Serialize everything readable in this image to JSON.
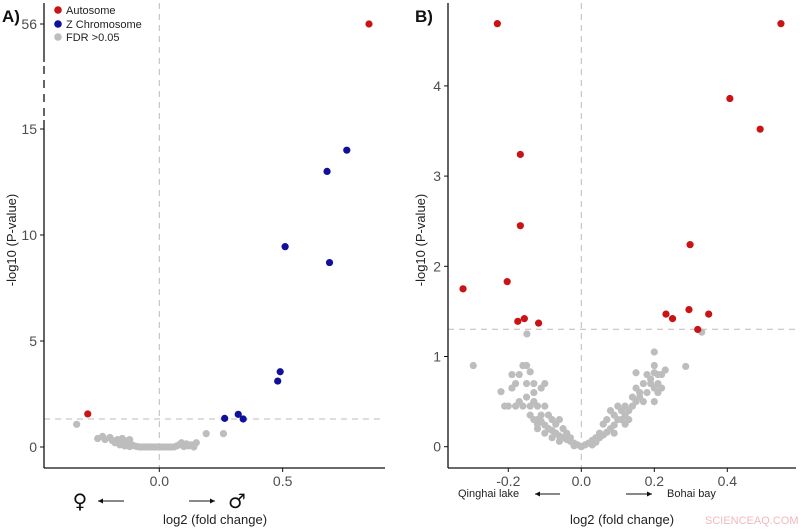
{
  "colors": {
    "autosome": "#c81414",
    "z_chromosome": "#10109a",
    "fdr": "#bdbdbd"
  },
  "watermark": "SCIENCEAQ.COM",
  "chart_data": [
    {
      "type": "scatter",
      "panel_label": "A)",
      "xlabel": "log2 (fold change)",
      "ylabel": "-log10 (P-value)",
      "x_ticks": [
        "0.0",
        "0.5"
      ],
      "y_ticks": [
        "0",
        "5",
        "10",
        "15",
        "56"
      ],
      "xlim": [
        -0.4,
        0.92
      ],
      "ylim": [
        -0.3,
        57
      ],
      "axis_break": [
        17,
        55
      ],
      "threshold_y": 1.3,
      "vline_x": 0,
      "left_annotation": "♀",
      "right_annotation": "♂",
      "legend": {
        "placement": "top-left",
        "entries": [
          "Autosome",
          "Z Chromosome",
          "FDR >0.05"
        ]
      },
      "series": [
        {
          "name": "Autosome",
          "points": [
            [
              -0.29,
              1.56
            ],
            [
              0.85,
              56
            ]
          ]
        },
        {
          "name": "Z Chromosome",
          "points": [
            [
              0.265,
              1.35
            ],
            [
              0.32,
              1.54
            ],
            [
              0.34,
              1.32
            ],
            [
              0.48,
              3.11
            ],
            [
              0.49,
              3.55
            ],
            [
              0.51,
              9.45
            ],
            [
              0.68,
              13.0
            ],
            [
              0.69,
              8.7
            ],
            [
              0.76,
              14.0
            ]
          ]
        },
        {
          "name": "FDR >0.05",
          "points": [
            [
              -0.335,
              1.07
            ],
            [
              0.19,
              0.63
            ],
            [
              0.26,
              0.63
            ],
            [
              -0.25,
              0.4
            ],
            [
              -0.23,
              0.5
            ],
            [
              -0.22,
              0.35
            ],
            [
              -0.2,
              0.45
            ],
            [
              -0.19,
              0.3
            ],
            [
              -0.18,
              0.2
            ],
            [
              -0.17,
              0.35
            ],
            [
              -0.16,
              0.25
            ],
            [
              -0.15,
              0.4
            ],
            [
              -0.14,
              0.3
            ],
            [
              -0.13,
              0.15
            ],
            [
              -0.12,
              0.35
            ],
            [
              -0.11,
              0.1
            ],
            [
              -0.1,
              0.05
            ],
            [
              -0.09,
              0.02
            ],
            [
              -0.08,
              0.0
            ],
            [
              -0.07,
              0.0
            ],
            [
              -0.06,
              0.0
            ],
            [
              -0.05,
              0.0
            ],
            [
              -0.04,
              0.0
            ],
            [
              -0.03,
              0.0
            ],
            [
              -0.02,
              0.0
            ],
            [
              -0.01,
              0.0
            ],
            [
              0.0,
              0.0
            ],
            [
              0.01,
              0.0
            ],
            [
              0.02,
              0.0
            ],
            [
              0.03,
              0.0
            ],
            [
              0.04,
              0.0
            ],
            [
              0.05,
              0.0
            ],
            [
              0.06,
              0.0
            ],
            [
              0.07,
              0.05
            ],
            [
              0.08,
              0.1
            ],
            [
              0.09,
              0.2
            ],
            [
              0.1,
              0.1
            ],
            [
              0.11,
              0.15
            ],
            [
              0.12,
              0.05
            ],
            [
              0.13,
              0.1
            ],
            [
              0.14,
              0.0
            ],
            [
              0.15,
              0.2
            ],
            [
              -0.14,
              0.05
            ],
            [
              -0.12,
              0.02
            ],
            [
              -0.16,
              0.1
            ],
            [
              0.1,
              0.02
            ]
          ]
        }
      ]
    },
    {
      "type": "scatter",
      "panel_label": "B)",
      "xlabel": "log2 (fold change)",
      "ylabel": "-log10 (P-value)",
      "x_ticks": [
        "-0.2",
        "0.0",
        "0.2",
        "0.4"
      ],
      "y_ticks": [
        "0",
        "1",
        "2",
        "3",
        "4"
      ],
      "xlim": [
        -0.365,
        0.585
      ],
      "ylim": [
        -0.23,
        4.9
      ],
      "threshold_y": 1.3,
      "vline_x": 0,
      "left_annotation": "Qinghai lake",
      "right_annotation": "Bohai bay",
      "series": [
        {
          "name": "Autosome",
          "points": [
            [
              -0.23,
              4.69
            ],
            [
              0.547,
              4.69
            ],
            [
              0.407,
              3.86
            ],
            [
              0.49,
              3.52
            ],
            [
              -0.167,
              3.24
            ],
            [
              -0.167,
              2.45
            ],
            [
              0.298,
              2.24
            ],
            [
              -0.203,
              1.83
            ],
            [
              -0.324,
              1.75
            ],
            [
              -0.174,
              1.39
            ],
            [
              -0.156,
              1.42
            ],
            [
              -0.117,
              1.37
            ],
            [
              0.232,
              1.47
            ],
            [
              0.25,
              1.42
            ],
            [
              0.295,
              1.52
            ],
            [
              0.349,
              1.47
            ],
            [
              0.319,
              1.3
            ]
          ]
        },
        {
          "name": "FDR >0.05",
          "points": [
            [
              -0.149,
              1.25
            ],
            [
              0.33,
              1.27
            ],
            [
              -0.296,
              0.9
            ],
            [
              0.2,
              1.05
            ],
            [
              0.286,
              0.89
            ],
            [
              -0.22,
              0.61
            ],
            [
              -0.01,
              0.02
            ],
            [
              -0.02,
              0.04
            ],
            [
              -0.03,
              0.06
            ],
            [
              -0.04,
              0.08
            ],
            [
              -0.05,
              0.1
            ],
            [
              -0.06,
              0.12
            ],
            [
              -0.07,
              0.15
            ],
            [
              -0.08,
              0.18
            ],
            [
              -0.09,
              0.2
            ],
            [
              -0.1,
              0.24
            ],
            [
              -0.11,
              0.28
            ],
            [
              -0.12,
              0.3
            ],
            [
              -0.13,
              0.3
            ],
            [
              -0.14,
              0.35
            ],
            [
              -0.1,
              0.45
            ],
            [
              -0.12,
              0.45
            ],
            [
              -0.14,
              0.45
            ],
            [
              -0.16,
              0.45
            ],
            [
              -0.18,
              0.45
            ],
            [
              -0.2,
              0.45
            ],
            [
              -0.17,
              0.5
            ],
            [
              -0.15,
              0.55
            ],
            [
              -0.13,
              0.6
            ],
            [
              -0.11,
              0.65
            ],
            [
              -0.1,
              0.7
            ],
            [
              -0.19,
              0.65
            ],
            [
              -0.18,
              0.7
            ],
            [
              -0.17,
              0.8
            ],
            [
              -0.19,
              0.8
            ],
            [
              -0.16,
              0.9
            ],
            [
              -0.15,
              0.9
            ],
            [
              -0.14,
              0.83
            ],
            [
              -0.13,
              0.7
            ],
            [
              -0.15,
              0.7
            ],
            [
              -0.06,
              0.3
            ],
            [
              -0.07,
              0.25
            ],
            [
              -0.08,
              0.3
            ],
            [
              -0.09,
              0.35
            ],
            [
              -0.11,
              0.35
            ],
            [
              -0.12,
              0.25
            ],
            [
              -0.05,
              0.2
            ],
            [
              -0.04,
              0.15
            ],
            [
              -0.03,
              0.1
            ],
            [
              -0.06,
              0.06
            ],
            [
              -0.08,
              0.1
            ],
            [
              -0.1,
              0.15
            ],
            [
              -0.02,
              0.01
            ],
            [
              -0.12,
              0.2
            ],
            [
              -0.13,
              0.5
            ],
            [
              -0.21,
              0.45
            ],
            [
              0.0,
              0.0
            ],
            [
              0.01,
              0.02
            ],
            [
              0.02,
              0.04
            ],
            [
              0.03,
              0.07
            ],
            [
              0.04,
              0.1
            ],
            [
              0.05,
              0.1
            ],
            [
              0.06,
              0.13
            ],
            [
              0.07,
              0.16
            ],
            [
              0.08,
              0.2
            ],
            [
              0.09,
              0.24
            ],
            [
              0.1,
              0.3
            ],
            [
              0.11,
              0.3
            ],
            [
              0.12,
              0.35
            ],
            [
              0.13,
              0.4
            ],
            [
              0.14,
              0.45
            ],
            [
              0.15,
              0.5
            ],
            [
              0.16,
              0.55
            ],
            [
              0.17,
              0.5
            ],
            [
              0.18,
              0.6
            ],
            [
              0.19,
              0.7
            ],
            [
              0.2,
              0.65
            ],
            [
              0.21,
              0.7
            ],
            [
              0.22,
              0.8
            ],
            [
              0.23,
              0.85
            ],
            [
              0.17,
              0.7
            ],
            [
              0.15,
              0.65
            ],
            [
              0.12,
              0.45
            ],
            [
              0.11,
              0.4
            ],
            [
              0.09,
              0.35
            ],
            [
              0.08,
              0.4
            ],
            [
              0.07,
              0.3
            ],
            [
              0.06,
              0.25
            ],
            [
              0.05,
              0.15
            ],
            [
              0.04,
              0.05
            ],
            [
              0.03,
              0.02
            ],
            [
              0.19,
              0.75
            ],
            [
              0.21,
              0.8
            ],
            [
              0.2,
              0.9
            ],
            [
              0.18,
              0.8
            ],
            [
              0.16,
              0.6
            ],
            [
              0.14,
              0.55
            ],
            [
              0.13,
              0.3
            ],
            [
              0.1,
              0.45
            ],
            [
              0.12,
              0.25
            ],
            [
              0.09,
              0.15
            ],
            [
              0.2,
              0.5
            ],
            [
              0.22,
              0.65
            ],
            [
              0.21,
              0.6
            ],
            [
              0.15,
              0.82
            ],
            [
              0.2,
              0.82
            ]
          ]
        }
      ]
    }
  ]
}
